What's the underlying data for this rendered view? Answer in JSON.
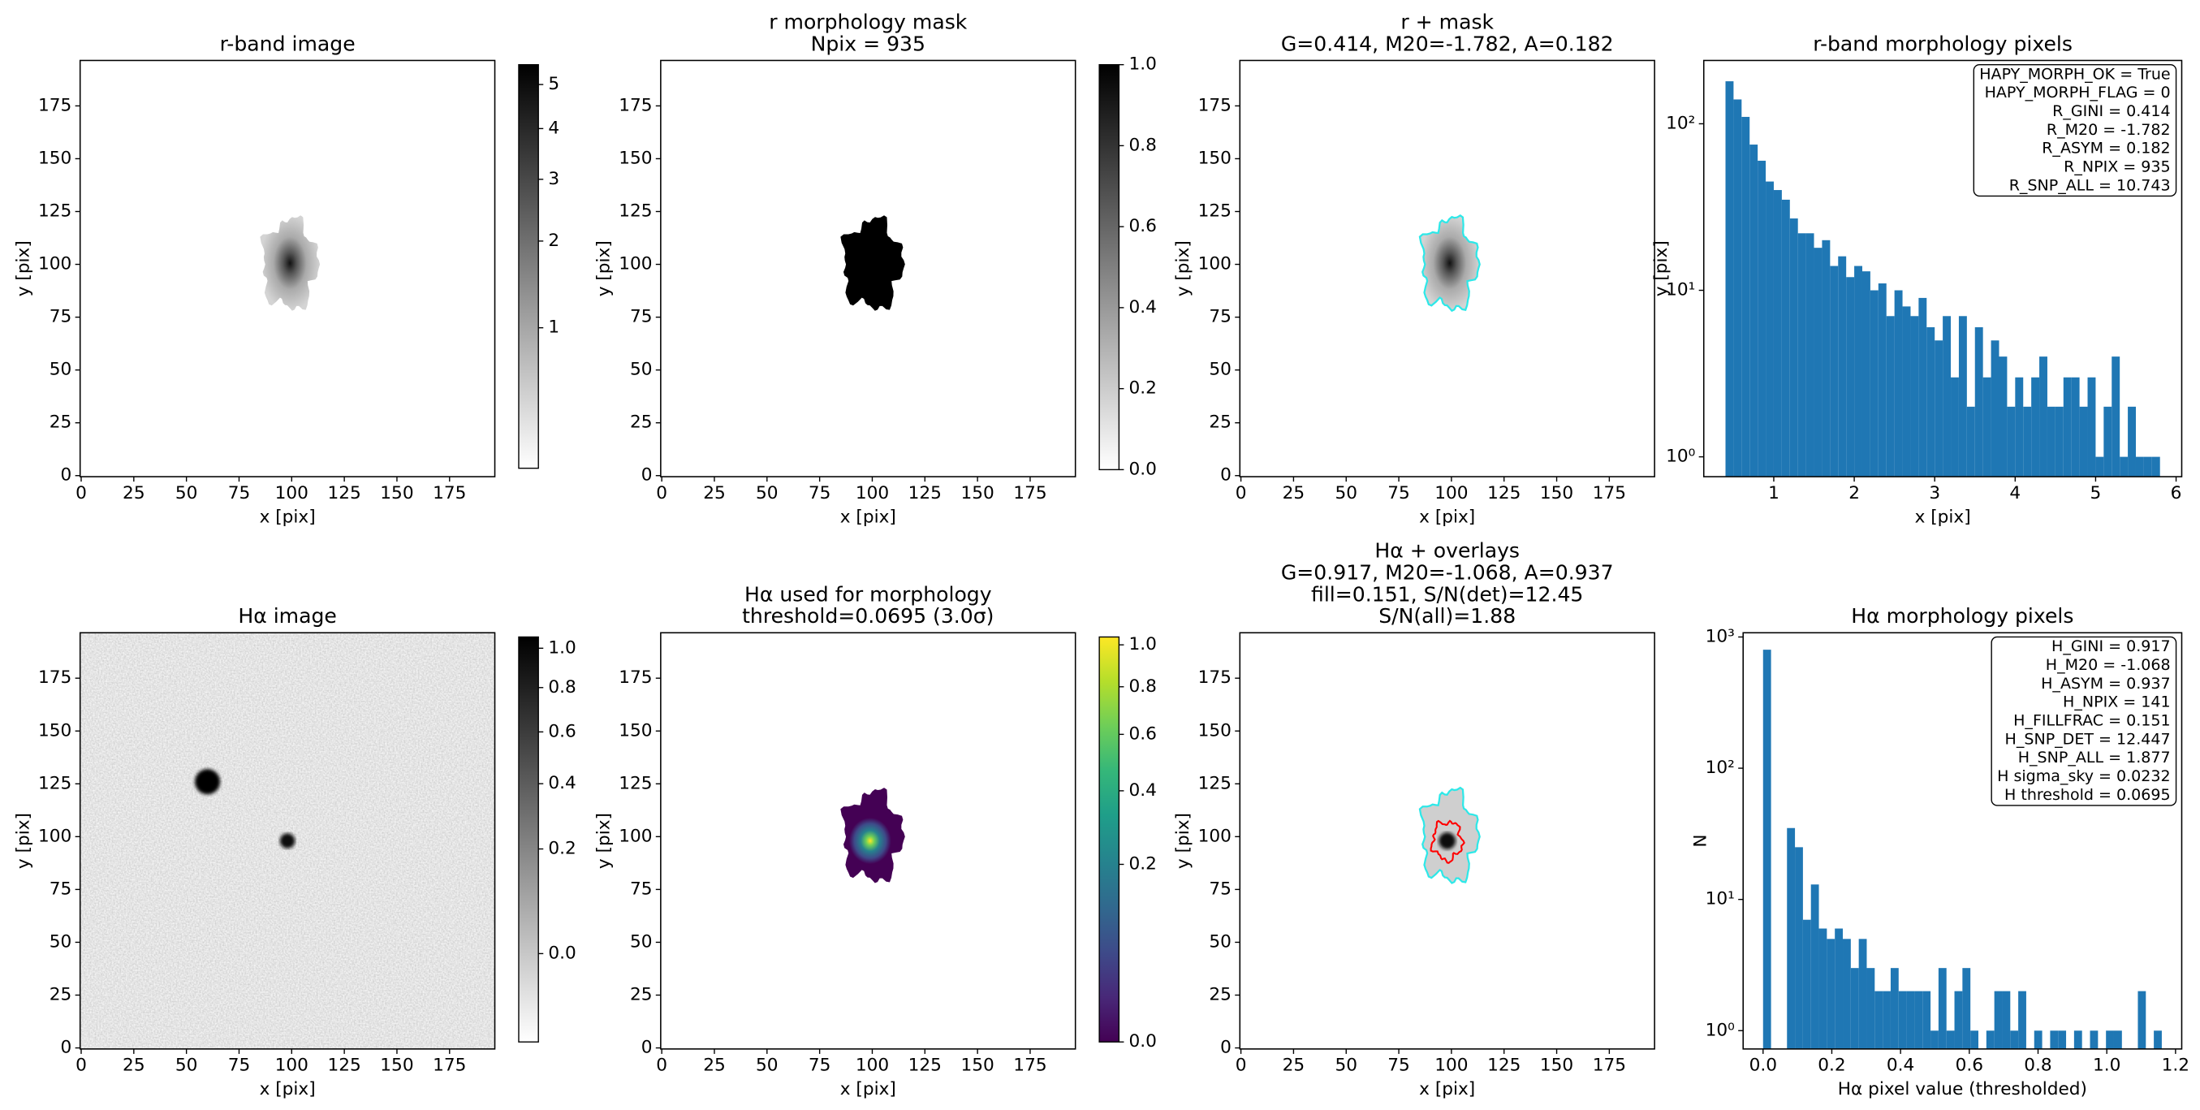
{
  "chart_data": [
    {
      "type": "image",
      "title": [
        "r-band image"
      ],
      "xlabel": "x [pix]",
      "ylabel": "y [pix]",
      "xlim": [
        -0.5,
        196.5
      ],
      "ylim": [
        -0.5,
        196.5
      ],
      "xticks": [
        0,
        25,
        50,
        75,
        100,
        125,
        150,
        175
      ],
      "yticks": [
        0,
        25,
        50,
        75,
        100,
        125,
        150,
        175
      ],
      "colorbar": {
        "cmap": "gray_r",
        "stretch": "sqrt",
        "clim": [
          0.381,
          5.49
        ],
        "ticks": [
          1,
          2,
          3,
          4,
          5
        ]
      }
    },
    {
      "type": "image",
      "title": [
        "r morphology mask",
        "Npix = 935"
      ],
      "xlabel": "x [pix]",
      "ylabel": "y [pix]",
      "xlim": [
        -0.5,
        196.5
      ],
      "ylim": [
        -0.5,
        196.5
      ],
      "xticks": [
        0,
        25,
        50,
        75,
        100,
        125,
        150,
        175
      ],
      "yticks": [
        0,
        25,
        50,
        75,
        100,
        125,
        150,
        175
      ],
      "colorbar": {
        "cmap": "gray_r",
        "stretch": "linear",
        "clim": [
          0,
          1
        ],
        "ticks": [
          {
            "value": 0,
            "label": "0.0"
          },
          {
            "value": 0.2,
            "label": "0.2"
          },
          {
            "value": 0.4,
            "label": "0.4"
          },
          {
            "value": 0.6,
            "label": "0.6"
          },
          {
            "value": 0.8,
            "label": "0.8"
          },
          {
            "value": 1,
            "label": "1.0"
          }
        ]
      }
    },
    {
      "type": "image",
      "title": [
        "r + mask",
        "G=0.414, M20=-1.782, A=0.182"
      ],
      "xlabel": "x [pix]",
      "ylabel": "y [pix]",
      "xlim": [
        -0.5,
        196.5
      ],
      "ylim": [
        -0.5,
        196.5
      ],
      "xticks": [
        0,
        25,
        50,
        75,
        100,
        125,
        150,
        175
      ],
      "yticks": [
        0,
        25,
        50,
        75,
        100,
        125,
        150,
        175
      ]
    },
    {
      "type": "histogram",
      "title": [
        "r-band morphology pixels"
      ],
      "xlabel": "x [pix]",
      "ylabel": "y [pix]",
      "color": "#1f77b4",
      "bins": [
        0.4,
        0.5,
        0.6,
        0.7,
        0.8,
        0.9,
        1.0,
        1.1,
        1.2,
        1.3,
        1.4,
        1.5,
        1.6,
        1.7,
        1.8,
        1.9,
        2.0,
        2.1,
        2.2,
        2.3,
        2.4,
        2.5,
        2.6,
        2.7,
        2.8,
        2.9,
        3.0,
        3.1,
        3.2,
        3.3,
        3.4,
        3.5,
        3.6,
        3.7,
        3.8,
        3.9,
        4.0,
        4.1,
        4.2,
        4.3,
        4.4,
        4.5,
        4.6,
        4.7,
        4.8,
        4.9,
        5.0,
        5.1,
        5.2,
        5.3,
        5.4,
        5.5,
        5.6,
        5.7,
        5.8
      ],
      "values": [
        180,
        140,
        110,
        75,
        60,
        45,
        40,
        35,
        27,
        22,
        22,
        18,
        20,
        14,
        16,
        12,
        14,
        13,
        10,
        11,
        7,
        10,
        8,
        7,
        9,
        6,
        5,
        7,
        3,
        7,
        2,
        6,
        3,
        5,
        4,
        2,
        3,
        2,
        3,
        4,
        2,
        2,
        3,
        3,
        2,
        3,
        1,
        2,
        4,
        1,
        2,
        1,
        1,
        1
      ],
      "xlim": [
        0.13,
        6.07
      ],
      "xticks": [
        1,
        2,
        3,
        4,
        5,
        6
      ],
      "yscale": "log",
      "ylim": [
        0.76,
        240
      ],
      "yticks": [
        {
          "value": 1,
          "label": "10⁰"
        },
        {
          "value": 10,
          "label": "10¹"
        },
        {
          "value": 100,
          "label": "10²"
        }
      ],
      "annotation": [
        "HAPY_MORPH_OK = True",
        "HAPY_MORPH_FLAG = 0",
        "R_GINI = 0.414",
        "R_M20 = -1.782",
        "R_ASYM = 0.182",
        "R_NPIX = 935",
        "R_SNP_ALL = 10.743"
      ]
    },
    {
      "type": "image",
      "title": [
        "Hα image"
      ],
      "xlabel": "x [pix]",
      "ylabel": "y [pix]",
      "xlim": [
        -0.5,
        196.5
      ],
      "ylim": [
        -0.5,
        196.5
      ],
      "xticks": [
        0,
        25,
        50,
        75,
        100,
        125,
        150,
        175
      ],
      "yticks": [
        0,
        25,
        50,
        75,
        100,
        125,
        150,
        175
      ],
      "colorbar": {
        "cmap": "gray_r",
        "stretch": "sqrt",
        "clim": [
          -0.053,
          1.061
        ],
        "ticks": [
          {
            "value": 0,
            "label": "0.0"
          },
          {
            "value": 0.2,
            "label": "0.2"
          },
          {
            "value": 0.4,
            "label": "0.4"
          },
          {
            "value": 0.6,
            "label": "0.6"
          },
          {
            "value": 0.8,
            "label": "0.8"
          },
          {
            "value": 1,
            "label": "1.0"
          }
        ]
      }
    },
    {
      "type": "image",
      "title": [
        "Hα used for morphology",
        "threshold=0.0695 (3.0σ)"
      ],
      "xlabel": "x [pix]",
      "ylabel": "y [pix]",
      "xlim": [
        -0.5,
        196.5
      ],
      "ylim": [
        -0.5,
        196.5
      ],
      "xticks": [
        0,
        25,
        50,
        75,
        100,
        125,
        150,
        175
      ],
      "yticks": [
        0,
        25,
        50,
        75,
        100,
        125,
        150,
        175
      ],
      "colorbar": {
        "cmap": "viridis",
        "stretch": "sqrt",
        "clim": [
          0,
          1.04
        ],
        "ticks": [
          {
            "value": 0,
            "label": "0.0"
          },
          {
            "value": 0.2,
            "label": "0.2"
          },
          {
            "value": 0.4,
            "label": "0.4"
          },
          {
            "value": 0.6,
            "label": "0.6"
          },
          {
            "value": 0.8,
            "label": "0.8"
          },
          {
            "value": 1,
            "label": "1.0"
          }
        ]
      }
    },
    {
      "type": "image",
      "title": [
        "Hα + overlays",
        "G=0.917, M20=-1.068, A=0.937",
        "fill=0.151, S/N(det)=12.45",
        "S/N(all)=1.88"
      ],
      "xlabel": "x [pix]",
      "ylabel": "y [pix]",
      "xlim": [
        -0.5,
        196.5
      ],
      "ylim": [
        -0.5,
        196.5
      ],
      "xticks": [
        0,
        25,
        50,
        75,
        100,
        125,
        150,
        175
      ],
      "yticks": [
        0,
        25,
        50,
        75,
        100,
        125,
        150,
        175
      ]
    },
    {
      "type": "histogram",
      "title": [
        "Hα morphology pixels"
      ],
      "xlabel": "Hα pixel value (thresholded)",
      "ylabel": "N",
      "color": "#1f77b4",
      "bins": [
        0,
        0.0232,
        0.0464,
        0.0696,
        0.0928,
        0.116,
        0.1392,
        0.1624,
        0.1856,
        0.2088,
        0.232,
        0.2552,
        0.2784,
        0.3016,
        0.3248,
        0.348,
        0.3712,
        0.3944,
        0.4176,
        0.4408,
        0.464,
        0.4872,
        0.5104,
        0.5336,
        0.5568,
        0.58,
        0.6032,
        0.6264,
        0.6496,
        0.6728,
        0.696,
        0.7192,
        0.7424,
        0.7656,
        0.7888,
        0.812,
        0.8352,
        0.8584,
        0.8816,
        0.9048,
        0.928,
        0.9512,
        0.9744,
        0.9976,
        1.0208,
        1.044,
        1.0672,
        1.0904,
        1.1136,
        1.1368,
        1.16
      ],
      "values": [
        800,
        0,
        0,
        35,
        25,
        7,
        13,
        6,
        5,
        6,
        5,
        3,
        5,
        3,
        2,
        2,
        3,
        2,
        2,
        2,
        2,
        1,
        3,
        1,
        2,
        3,
        1,
        0,
        1,
        2,
        2,
        1,
        2,
        0,
        1,
        0,
        1,
        1,
        0,
        1,
        0,
        1,
        0,
        1,
        1,
        0,
        0,
        2,
        0,
        1
      ],
      "xlim": [
        -0.058,
        1.218
      ],
      "xticks": [
        {
          "value": 0,
          "label": "0.0"
        },
        {
          "value": 0.2,
          "label": "0.2"
        },
        {
          "value": 0.4,
          "label": "0.4"
        },
        {
          "value": 0.6,
          "label": "0.6"
        },
        {
          "value": 0.8,
          "label": "0.8"
        },
        {
          "value": 1,
          "label": "1.0"
        },
        {
          "value": 1.2,
          "label": "1.2"
        }
      ],
      "yscale": "log",
      "ylim": [
        0.725,
        1077
      ],
      "yticks": [
        {
          "value": 1,
          "label": "10⁰"
        },
        {
          "value": 10,
          "label": "10¹"
        },
        {
          "value": 100,
          "label": "10²"
        },
        {
          "value": 1000,
          "label": "10³"
        }
      ],
      "annotation": [
        "H_GINI = 0.917",
        "H_M20 = -1.068",
        "H_ASYM = 0.937",
        "H_NPIX = 141",
        "H_FILLFRAC = 0.151",
        "H_SNP_DET = 12.447",
        "H_SNP_ALL = 1.877",
        "H sigma_sky = 0.0232",
        "H threshold = 0.0695"
      ]
    }
  ]
}
